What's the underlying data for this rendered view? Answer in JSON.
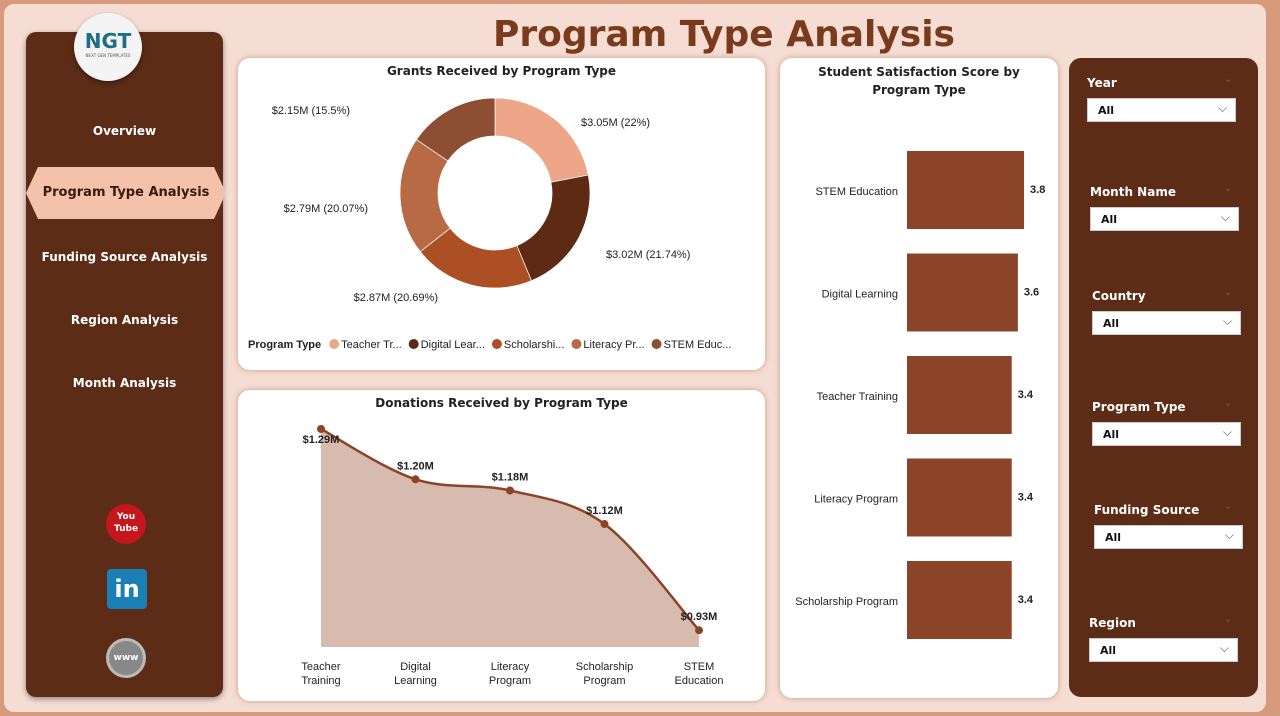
{
  "header": {
    "title": "Program Type Analysis"
  },
  "logo": {
    "text": "NGT",
    "subtext": "NEXT GEN TEMPLATES"
  },
  "sidebar": {
    "items": [
      {
        "label": "Overview"
      },
      {
        "label": "Program Type Analysis",
        "active": true
      },
      {
        "label": "Funding Source Analysis"
      },
      {
        "label": "Region Analysis"
      },
      {
        "label": "Month Analysis"
      }
    ],
    "social": [
      {
        "icon": "youtube-icon",
        "text": "You Tube"
      },
      {
        "icon": "linkedin-icon",
        "text": "in"
      },
      {
        "icon": "globe-icon",
        "text": "www"
      }
    ]
  },
  "colors": {
    "sidebar": "#5c2c16",
    "accent": "#f4c2aa",
    "bar": "#8b4428",
    "area": "#d7bbae",
    "line": "#8b4428"
  },
  "chart_data": [
    {
      "type": "pie",
      "title": "Grants Received by Program Type",
      "legend_title": "Program Type",
      "legend_position": "bottom",
      "slices": [
        {
          "name": "Teacher Tr...",
          "value": 3.05,
          "label": "$3.05M (22%)",
          "color": "#eea688"
        },
        {
          "name": "Digital Lear...",
          "value": 3.02,
          "label": "$3.02M (21.74%)",
          "color": "#5e2a14"
        },
        {
          "name": "Scholarshi...",
          "value": 2.87,
          "label": "$2.87M (20.69%)",
          "color": "#ad4f25"
        },
        {
          "name": "Literacy Pr...",
          "value": 2.79,
          "label": "$2.79M (20.07%)",
          "color": "#b86a45"
        },
        {
          "name": "STEM Educ...",
          "value": 2.15,
          "label": "$2.15M (15.5%)",
          "color": "#8e4e34"
        }
      ]
    },
    {
      "type": "area",
      "title": "Donations Received by Program Type",
      "categories": [
        "Teacher Training",
        "Digital Learning",
        "Literacy Program",
        "Scholarship Program",
        "STEM Education"
      ],
      "values": [
        1.29,
        1.2,
        1.18,
        1.12,
        0.93
      ],
      "labels": [
        "$1.29M",
        "$1.20M",
        "$1.18M",
        "$1.12M",
        "$0.93M"
      ]
    },
    {
      "type": "bar",
      "orientation": "horizontal",
      "title": "Student Satisfaction Score by Program Type",
      "categories": [
        "STEM Education",
        "Digital Learning",
        "Teacher Training",
        "Literacy Program",
        "Scholarship Program"
      ],
      "values": [
        3.8,
        3.6,
        3.4,
        3.4,
        3.4
      ]
    }
  ],
  "filters": [
    {
      "label": "Year",
      "value": "All"
    },
    {
      "label": "Month Name",
      "value": "All"
    },
    {
      "label": "Country",
      "value": "All"
    },
    {
      "label": "Program Type",
      "value": "All"
    },
    {
      "label": "Funding Source",
      "value": "All"
    },
    {
      "label": "Region",
      "value": "All"
    }
  ]
}
